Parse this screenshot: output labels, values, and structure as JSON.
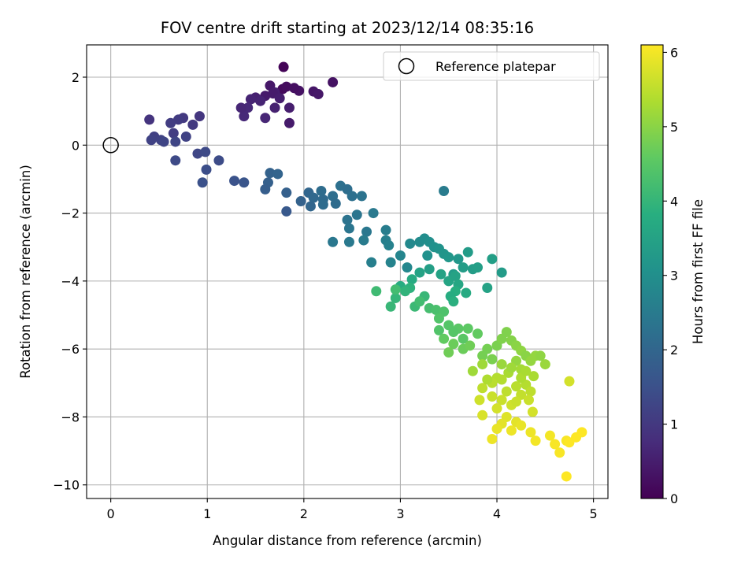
{
  "chart_data": {
    "type": "scatter",
    "title": "FOV centre drift starting at 2023/12/14 08:35:16",
    "xlabel": "Angular distance from reference (arcmin)",
    "ylabel": "Rotation from reference (arcmin)",
    "xlim": [
      -0.25,
      5.15
    ],
    "ylim": [
      -10.4,
      2.95
    ],
    "xticks": [
      0,
      1,
      2,
      3,
      4,
      5
    ],
    "yticks": [
      -10,
      -8,
      -6,
      -4,
      -2,
      0,
      2
    ],
    "xtick_labels": [
      "0",
      "1",
      "2",
      "3",
      "4",
      "5"
    ],
    "ytick_labels": [
      "−10",
      "−8",
      "−6",
      "−4",
      "−2",
      "0",
      "2"
    ],
    "grid": true,
    "legend": {
      "location": "upper right",
      "entries": [
        {
          "label": "Reference platepar",
          "marker": "open-circle"
        }
      ]
    },
    "reference_point": {
      "x": 0,
      "y": 0
    },
    "colorbar": {
      "label": "Hours from first FF file",
      "colormap": "viridis",
      "min": 0,
      "max": 6.1,
      "ticks": [
        0,
        1,
        2,
        3,
        4,
        5,
        6
      ],
      "tick_labels": [
        "0",
        "1",
        "2",
        "3",
        "4",
        "5",
        "6"
      ]
    },
    "series": [
      {
        "colorby": "hours",
        "points": [
          [
            1.79,
            2.3,
            0.05
          ],
          [
            1.78,
            1.65,
            0.15
          ],
          [
            1.82,
            1.72,
            0.2
          ],
          [
            1.95,
            1.6,
            0.3
          ],
          [
            1.9,
            1.68,
            0.25
          ],
          [
            2.1,
            1.58,
            0.35
          ],
          [
            2.15,
            1.5,
            0.4
          ],
          [
            2.3,
            1.85,
            0.3
          ],
          [
            1.6,
            1.45,
            0.45
          ],
          [
            1.65,
            1.75,
            0.4
          ],
          [
            1.7,
            1.55,
            0.5
          ],
          [
            1.5,
            1.4,
            0.55
          ],
          [
            1.55,
            1.3,
            0.6
          ],
          [
            1.45,
            1.35,
            0.6
          ],
          [
            1.42,
            1.1,
            0.7
          ],
          [
            1.6,
            0.8,
            0.65
          ],
          [
            1.38,
            0.85,
            0.7
          ],
          [
            1.85,
            0.65,
            0.45
          ],
          [
            1.85,
            1.1,
            0.5
          ],
          [
            1.7,
            1.1,
            0.55
          ],
          [
            1.35,
            1.1,
            0.65
          ],
          [
            1.68,
            1.52,
            0.45
          ],
          [
            1.75,
            1.38,
            0.5
          ],
          [
            0.4,
            0.75,
            0.9
          ],
          [
            0.92,
            0.85,
            0.95
          ],
          [
            0.75,
            0.8,
            1.0
          ],
          [
            0.7,
            0.75,
            1.05
          ],
          [
            0.85,
            0.6,
            1.0
          ],
          [
            0.62,
            0.65,
            1.1
          ],
          [
            0.65,
            0.35,
            1.1
          ],
          [
            0.45,
            0.25,
            1.15
          ],
          [
            0.42,
            0.15,
            1.2
          ],
          [
            0.52,
            0.15,
            1.2
          ],
          [
            0.55,
            0.1,
            1.25
          ],
          [
            0.78,
            0.25,
            1.2
          ],
          [
            0.67,
            0.1,
            1.25
          ],
          [
            0.9,
            -0.25,
            1.3
          ],
          [
            0.98,
            -0.2,
            1.35
          ],
          [
            0.67,
            -0.45,
            1.35
          ],
          [
            1.12,
            -0.45,
            1.4
          ],
          [
            0.99,
            -0.72,
            1.45
          ],
          [
            0.95,
            -1.1,
            1.5
          ],
          [
            1.28,
            -1.05,
            1.55
          ],
          [
            1.38,
            -1.1,
            1.6
          ],
          [
            1.65,
            -0.82,
            1.9
          ],
          [
            1.73,
            -0.85,
            1.95
          ],
          [
            1.63,
            -1.1,
            1.85
          ],
          [
            1.6,
            -1.3,
            1.8
          ],
          [
            1.82,
            -1.95,
            1.7
          ],
          [
            1.82,
            -1.4,
            1.85
          ],
          [
            1.97,
            -1.65,
            1.9
          ],
          [
            2.05,
            -1.4,
            2.0
          ],
          [
            2.1,
            -1.55,
            2.05
          ],
          [
            2.07,
            -1.8,
            2.0
          ],
          [
            2.2,
            -1.6,
            2.1
          ],
          [
            2.18,
            -1.35,
            2.15
          ],
          [
            2.3,
            -1.5,
            2.2
          ],
          [
            2.33,
            -1.72,
            2.15
          ],
          [
            2.38,
            -1.2,
            2.25
          ],
          [
            2.45,
            -1.3,
            2.2
          ],
          [
            2.5,
            -1.5,
            2.25
          ],
          [
            2.2,
            -1.75,
            2.15
          ],
          [
            2.45,
            -2.2,
            2.3
          ],
          [
            2.55,
            -2.05,
            2.35
          ],
          [
            2.6,
            -1.5,
            2.3
          ],
          [
            2.47,
            -2.45,
            2.35
          ],
          [
            2.65,
            -2.55,
            2.4
          ],
          [
            2.72,
            -2.0,
            2.45
          ],
          [
            2.62,
            -2.8,
            2.5
          ],
          [
            2.47,
            -2.85,
            2.45
          ],
          [
            2.3,
            -2.85,
            2.4
          ],
          [
            2.85,
            -2.5,
            2.55
          ],
          [
            2.85,
            -2.8,
            2.6
          ],
          [
            2.88,
            -2.95,
            2.65
          ],
          [
            2.7,
            -3.45,
            2.6
          ],
          [
            2.9,
            -3.45,
            2.7
          ],
          [
            3.0,
            -3.25,
            2.75
          ],
          [
            3.07,
            -3.6,
            2.8
          ],
          [
            3.1,
            -2.9,
            2.85
          ],
          [
            3.2,
            -2.85,
            2.9
          ],
          [
            3.25,
            -2.75,
            2.95
          ],
          [
            3.3,
            -2.85,
            3.0
          ],
          [
            3.35,
            -3.0,
            3.05
          ],
          [
            3.28,
            -3.25,
            3.05
          ],
          [
            3.4,
            -3.05,
            3.1
          ],
          [
            3.45,
            -3.2,
            3.15
          ],
          [
            3.5,
            -3.3,
            3.2
          ],
          [
            3.45,
            -1.35,
            2.5
          ],
          [
            3.6,
            -3.35,
            3.2
          ],
          [
            3.55,
            -3.8,
            3.3
          ],
          [
            3.7,
            -3.15,
            3.3
          ],
          [
            3.65,
            -3.6,
            3.35
          ],
          [
            3.75,
            -3.65,
            3.35
          ],
          [
            3.8,
            -3.6,
            3.4
          ],
          [
            3.95,
            -3.35,
            3.4
          ],
          [
            4.05,
            -3.75,
            3.3
          ],
          [
            3.42,
            -3.8,
            3.5
          ],
          [
            3.5,
            -4.0,
            3.55
          ],
          [
            3.57,
            -3.85,
            3.5
          ],
          [
            3.6,
            -4.1,
            3.6
          ],
          [
            3.9,
            -4.2,
            3.5
          ],
          [
            3.68,
            -4.35,
            3.7
          ],
          [
            3.57,
            -4.3,
            3.8
          ],
          [
            3.52,
            -4.45,
            3.75
          ],
          [
            3.55,
            -4.6,
            3.85
          ],
          [
            3.3,
            -3.65,
            3.4
          ],
          [
            3.2,
            -3.75,
            3.5
          ],
          [
            3.12,
            -3.95,
            3.7
          ],
          [
            3.0,
            -4.15,
            3.75
          ],
          [
            3.1,
            -4.2,
            3.9
          ],
          [
            3.05,
            -4.3,
            3.95
          ],
          [
            2.95,
            -4.5,
            4.0
          ],
          [
            2.9,
            -4.75,
            4.05
          ],
          [
            3.15,
            -4.75,
            4.1
          ],
          [
            3.25,
            -4.45,
            4.05
          ],
          [
            2.75,
            -4.3,
            4.15
          ],
          [
            2.95,
            -4.25,
            4.2
          ],
          [
            3.2,
            -4.6,
            4.2
          ],
          [
            3.3,
            -4.8,
            4.25
          ],
          [
            3.37,
            -4.85,
            4.3
          ],
          [
            3.45,
            -4.9,
            4.35
          ],
          [
            3.4,
            -5.1,
            4.4
          ],
          [
            3.5,
            -5.3,
            4.45
          ],
          [
            3.6,
            -5.4,
            4.5
          ],
          [
            3.55,
            -5.5,
            4.45
          ],
          [
            3.7,
            -5.4,
            4.55
          ],
          [
            3.8,
            -5.55,
            4.6
          ],
          [
            3.65,
            -5.7,
            4.5
          ],
          [
            3.4,
            -5.45,
            4.4
          ],
          [
            3.45,
            -5.7,
            4.6
          ],
          [
            3.55,
            -5.85,
            4.7
          ],
          [
            3.5,
            -6.1,
            4.75
          ],
          [
            3.65,
            -6.0,
            4.7
          ],
          [
            3.72,
            -5.9,
            4.75
          ],
          [
            3.85,
            -6.2,
            4.8
          ],
          [
            3.95,
            -6.3,
            4.85
          ],
          [
            3.9,
            -6.0,
            4.8
          ],
          [
            4.0,
            -5.9,
            4.85
          ],
          [
            4.05,
            -5.7,
            4.9
          ],
          [
            4.1,
            -5.5,
            4.9
          ],
          [
            4.15,
            -5.75,
            4.95
          ],
          [
            4.2,
            -5.9,
            5.0
          ],
          [
            4.25,
            -6.05,
            5.05
          ],
          [
            4.3,
            -6.2,
            5.0
          ],
          [
            4.35,
            -6.35,
            5.1
          ],
          [
            4.4,
            -6.2,
            5.1
          ],
          [
            4.5,
            -6.45,
            5.15
          ],
          [
            4.2,
            -6.35,
            5.1
          ],
          [
            4.05,
            -6.45,
            5.15
          ],
          [
            3.75,
            -6.65,
            5.2
          ],
          [
            3.85,
            -6.45,
            5.2
          ],
          [
            4.25,
            -6.6,
            5.25
          ],
          [
            4.38,
            -6.8,
            5.3
          ],
          [
            4.12,
            -6.7,
            5.3
          ],
          [
            4.3,
            -7.05,
            5.4
          ],
          [
            4.2,
            -7.1,
            5.45
          ],
          [
            4.35,
            -7.25,
            5.5
          ],
          [
            4.0,
            -6.85,
            5.4
          ],
          [
            3.95,
            -7.0,
            5.45
          ],
          [
            3.85,
            -7.15,
            5.5
          ],
          [
            4.1,
            -7.25,
            5.5
          ],
          [
            4.25,
            -7.35,
            5.55
          ],
          [
            4.33,
            -7.5,
            5.6
          ],
          [
            4.05,
            -7.5,
            5.6
          ],
          [
            3.95,
            -7.4,
            5.6
          ],
          [
            4.15,
            -7.65,
            5.65
          ],
          [
            3.82,
            -7.5,
            5.65
          ],
          [
            4.0,
            -7.75,
            5.7
          ],
          [
            4.37,
            -7.85,
            5.7
          ],
          [
            3.85,
            -7.95,
            5.75
          ],
          [
            4.1,
            -8.0,
            5.8
          ],
          [
            4.2,
            -8.15,
            5.85
          ],
          [
            4.05,
            -8.2,
            5.85
          ],
          [
            4.25,
            -8.25,
            5.9
          ],
          [
            4.0,
            -8.35,
            5.9
          ],
          [
            4.15,
            -8.4,
            5.95
          ],
          [
            4.35,
            -8.45,
            5.95
          ],
          [
            4.4,
            -8.7,
            6.0
          ],
          [
            4.55,
            -8.55,
            6.0
          ],
          [
            4.6,
            -8.8,
            6.05
          ],
          [
            4.65,
            -9.05,
            6.05
          ],
          [
            4.72,
            -8.7,
            6.05
          ],
          [
            4.75,
            -8.75,
            6.1
          ],
          [
            4.82,
            -8.6,
            6.1
          ],
          [
            4.88,
            -8.45,
            6.1
          ],
          [
            4.72,
            -9.75,
            6.1
          ],
          [
            3.95,
            -8.65,
            5.95
          ],
          [
            4.75,
            -6.95,
            5.7
          ],
          [
            3.9,
            -6.9,
            5.35
          ],
          [
            4.25,
            -6.85,
            5.35
          ],
          [
            4.45,
            -6.2,
            5.05
          ],
          [
            4.15,
            -6.55,
            5.2
          ],
          [
            4.05,
            -6.9,
            5.4
          ],
          [
            4.3,
            -6.65,
            5.3
          ],
          [
            4.2,
            -7.55,
            5.6
          ]
        ]
      }
    ]
  }
}
